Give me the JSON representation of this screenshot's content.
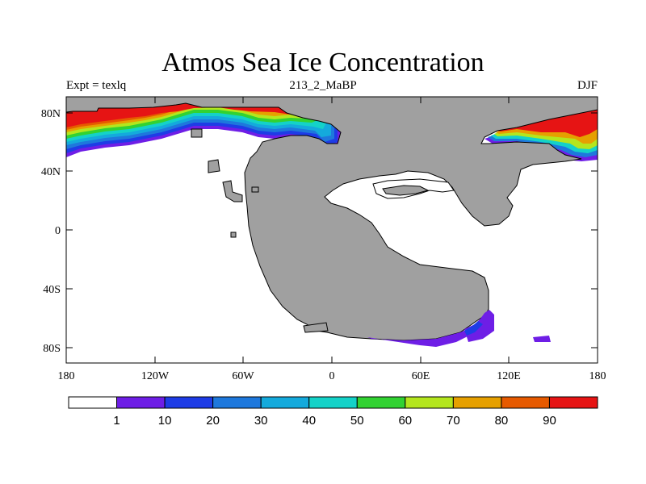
{
  "title": "Atmos Sea Ice Concentration",
  "subtitle_left": "Expt = texlq",
  "subtitle_center": "213_2_MaBP",
  "subtitle_right": "DJF",
  "colors": {
    "land": "#a0a0a0",
    "ocean": "#ffffff",
    "levels": [
      "#ffffff",
      "#6e1ee6",
      "#1e3ce6",
      "#1e78dc",
      "#14aadc",
      "#14d2c8",
      "#32d232",
      "#b4e61e",
      "#e6a000",
      "#e65a00",
      "#e61414"
    ]
  },
  "x_tick_labels": [
    "180",
    "120W",
    "60W",
    "0",
    "60E",
    "120E",
    "180"
  ],
  "y_tick_labels": [
    "80N",
    "40N",
    "0",
    "40S",
    "80S"
  ],
  "colorbar": {
    "labels": [
      "1",
      "10",
      "20",
      "30",
      "40",
      "50",
      "60",
      "70",
      "80",
      "90"
    ]
  }
}
